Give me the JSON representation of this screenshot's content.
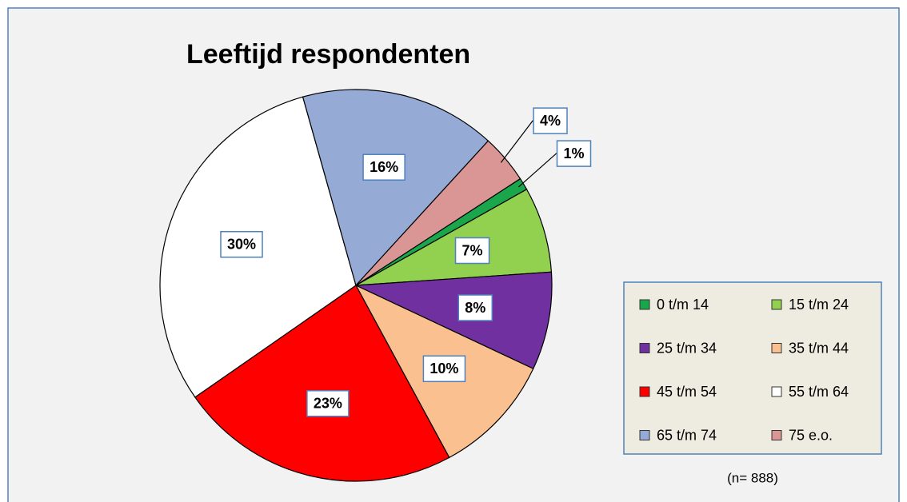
{
  "chart_data": {
    "type": "pie",
    "title": "Leeftijd respondenten",
    "categories": [
      "0 t/m 14",
      "15 t/m 24",
      "25 t/m 34",
      "35 t/m 44",
      "45 t/m 54",
      "55 t/m 64",
      "65 t/m 74",
      "75 e.o."
    ],
    "values": [
      1,
      7,
      8,
      10,
      23,
      30,
      16,
      4
    ],
    "value_labels": [
      "1%",
      "7%",
      "8%",
      "10%",
      "23%",
      "30%",
      "16%",
      "4%"
    ],
    "colors": [
      "#1aa64a",
      "#92d050",
      "#7030a0",
      "#fac090",
      "#ff0000",
      "#ffffff",
      "#95aad4",
      "#d99694"
    ],
    "legend": "right",
    "note": "(n= 888)"
  }
}
